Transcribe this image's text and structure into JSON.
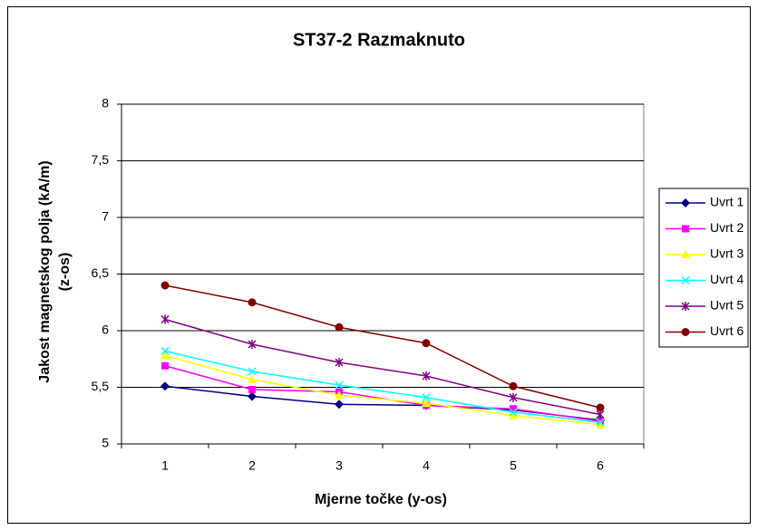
{
  "chart_data": {
    "type": "line",
    "title": "ST37-2 Razmaknuto",
    "xlabel": "Mjerne točke (y-os)",
    "ylabel": [
      "Jakost magnetskog polja (kA/m)",
      "(z-os)"
    ],
    "categories": [
      "1",
      "2",
      "3",
      "4",
      "5",
      "6"
    ],
    "series": [
      {
        "name": "Uvrt 1",
        "color": "#000080",
        "marker": "diamond",
        "values": [
          5.51,
          5.42,
          5.35,
          5.34,
          5.3,
          5.21
        ]
      },
      {
        "name": "Uvrt 2",
        "color": "#ff00ff",
        "marker": "square",
        "values": [
          5.69,
          5.48,
          5.46,
          5.34,
          5.31,
          5.2
        ]
      },
      {
        "name": "Uvrt 3",
        "color": "#ffff00",
        "marker": "triangle",
        "values": [
          5.78,
          5.57,
          5.43,
          5.36,
          5.25,
          5.17
        ]
      },
      {
        "name": "Uvrt 4",
        "color": "#00ffff",
        "marker": "x",
        "values": [
          5.82,
          5.64,
          5.52,
          5.41,
          5.28,
          5.19
        ]
      },
      {
        "name": "Uvrt 5",
        "color": "#800080",
        "marker": "star",
        "values": [
          6.1,
          5.88,
          5.72,
          5.6,
          5.41,
          5.26
        ]
      },
      {
        "name": "Uvrt 6",
        "color": "#800000",
        "marker": "circle",
        "values": [
          6.4,
          6.25,
          6.03,
          5.89,
          5.51,
          5.32
        ]
      }
    ],
    "ylim": [
      5,
      8
    ],
    "yticks": [
      5,
      {
        "value": 5.5,
        "label": "5,5"
      },
      6,
      {
        "value": 6.5,
        "label": "6,5"
      },
      7,
      {
        "value": 7.5,
        "label": "7,5"
      },
      8
    ],
    "grid": true,
    "legend": "right"
  }
}
